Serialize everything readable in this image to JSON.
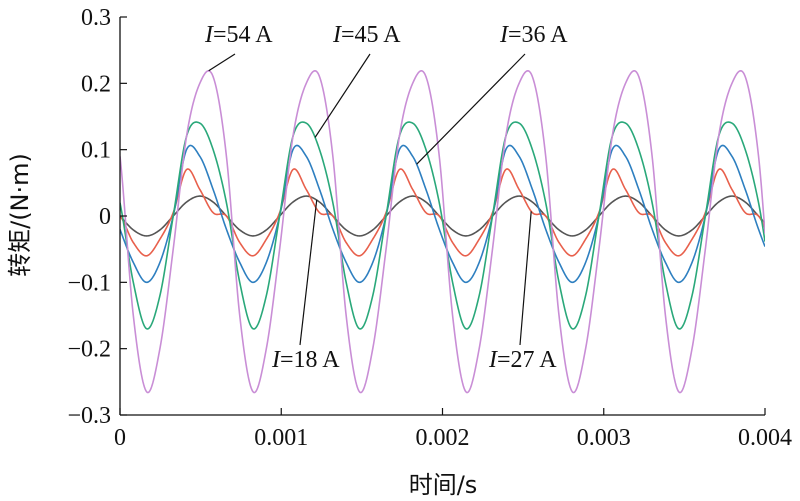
{
  "chart_data": {
    "type": "line",
    "title": "",
    "xlabel": "时间/s",
    "ylabel": "转矩/(N·m)",
    "xlim": [
      0,
      0.004
    ],
    "ylim": [
      -0.3,
      0.3
    ],
    "xticks": [
      0,
      0.001,
      0.002,
      0.003,
      0.004
    ],
    "xtick_labels": [
      "0",
      "0.001",
      "0.002",
      "0.003",
      "0.004"
    ],
    "yticks": [
      0.3,
      0.2,
      0.1,
      0,
      -0.1,
      -0.2,
      -0.3
    ],
    "ytick_labels": [
      "0.3",
      "0.2",
      "0.1",
      "0",
      "−0.1",
      "−0.2",
      "−0.3"
    ],
    "grid": false,
    "legend": "none",
    "period": 0.00066,
    "series": [
      {
        "name": "I=18 A",
        "color": "#555555",
        "amplitude": 0.03,
        "peak_time": 0.00041,
        "peak_value": 0.03,
        "trough_value": -0.03,
        "x": [
          0,
          8.2e-05,
          0.000165,
          0.000247,
          0.00033,
          0.000412,
          0.000495,
          0.000577,
          0.00066
        ],
        "y": [
          0.0,
          -0.021,
          -0.03,
          -0.021,
          0.0,
          0.021,
          0.03,
          0.021,
          0.0
        ]
      },
      {
        "name": "I=27 A",
        "color": "#e8604c",
        "amplitude": 0.075,
        "peak_time": 0.0004,
        "peak_value": 0.075,
        "trough_value": -0.06,
        "x": [
          0,
          8.2e-05,
          0.000165,
          0.000247,
          0.00033,
          0.000412,
          0.000495,
          0.000577,
          0.00066
        ],
        "y": [
          0.0,
          -0.04,
          -0.06,
          -0.035,
          0.005,
          0.07,
          0.04,
          0.005,
          0.0
        ]
      },
      {
        "name": "I=36 A",
        "color": "#2e7fc0",
        "amplitude": 0.105,
        "peak_time": 0.00043,
        "peak_value": 0.105,
        "trough_value": -0.1,
        "x": [
          0,
          8.2e-05,
          0.000165,
          0.000247,
          0.00033,
          0.000412,
          0.000495,
          0.000577,
          0.00066
        ],
        "y": [
          -0.02,
          -0.07,
          -0.1,
          -0.07,
          0.0,
          0.1,
          0.09,
          0.04,
          -0.02
        ]
      },
      {
        "name": "I=45 A",
        "color": "#2aa87a",
        "amplitude": 0.14,
        "peak_time": 0.00045,
        "peak_value": 0.14,
        "trough_value": -0.17,
        "x": [
          0,
          8.2e-05,
          0.000165,
          0.000247,
          0.00033,
          0.000412,
          0.000495,
          0.000577,
          0.00066
        ],
        "y": [
          0.02,
          -0.1,
          -0.17,
          -0.12,
          0.0,
          0.12,
          0.14,
          0.1,
          0.02
        ]
      },
      {
        "name": "I=54 A",
        "color": "#c98ed6",
        "amplitude": 0.21,
        "peak_time": 0.00055,
        "peak_value": 0.21,
        "trough_value": -0.265,
        "x": [
          0,
          8.2e-05,
          0.000165,
          0.000247,
          0.00033,
          0.000412,
          0.000495,
          0.000577,
          0.00066
        ],
        "y": [
          0.09,
          -0.15,
          -0.265,
          -0.2,
          -0.05,
          0.12,
          0.2,
          0.21,
          0.09
        ]
      }
    ],
    "annotations": [
      {
        "prefix": "I",
        "text": "=54 A",
        "series": "I=54 A"
      },
      {
        "prefix": "I",
        "text": "=45 A",
        "series": "I=45 A"
      },
      {
        "prefix": "I",
        "text": "=36 A",
        "series": "I=36 A"
      },
      {
        "prefix": "I",
        "text": "=18 A",
        "series": "I=18 A"
      },
      {
        "prefix": "I",
        "text": "=27 A",
        "series": "I=27 A"
      }
    ]
  }
}
